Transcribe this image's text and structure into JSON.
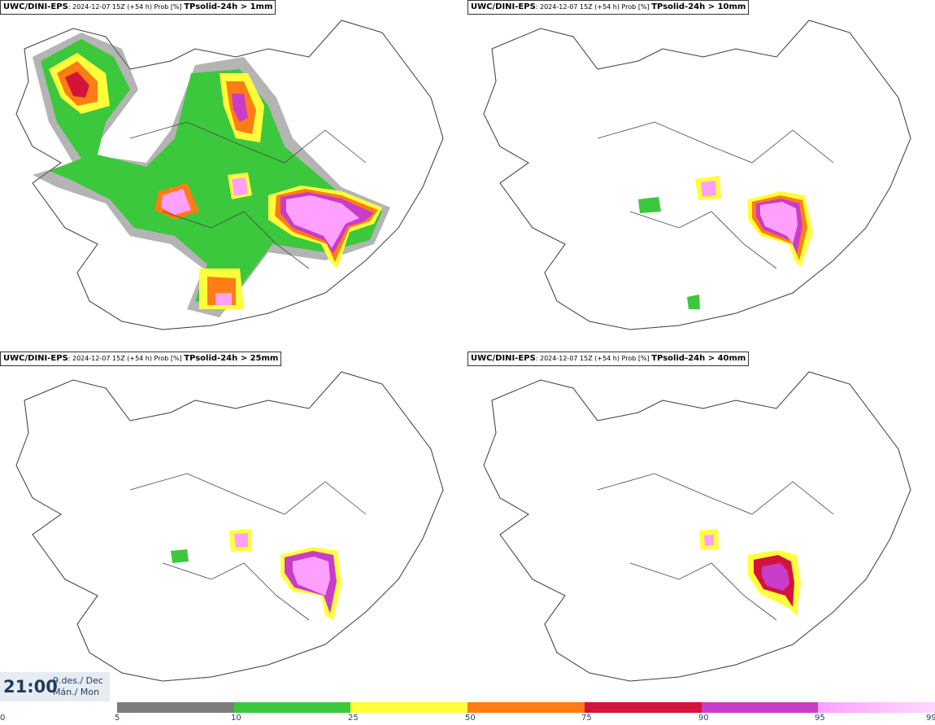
{
  "panels": [
    {
      "src": "UWC/DINI-EPS",
      "meta": ": 2024-12-07 15Z (+54 h) Prob [%] ",
      "var": "TPsolid-24h > 1mm"
    },
    {
      "src": "UWC/DINI-EPS",
      "meta": ": 2024-12-07 15Z (+54 h) Prob [%] ",
      "var": "TPsolid-24h > 10mm"
    },
    {
      "src": "UWC/DINI-EPS",
      "meta": ": 2024-12-07 15Z (+54 h) Prob [%] ",
      "var": "TPsolid-24h > 25mm"
    },
    {
      "src": "UWC/DINI-EPS",
      "meta": ": 2024-12-07 15Z (+54 h) Prob [%] ",
      "var": "TPsolid-24h > 40mm"
    }
  ],
  "time": "21:00",
  "date_line1": "9.des./ Dec",
  "date_line2": "Mán./ Mon",
  "colorbar": {
    "ticks": [
      "0",
      "5",
      "10",
      "25",
      "50",
      "75",
      "90",
      "95",
      "99"
    ],
    "colors": [
      "#b4b4b4",
      "#7d7d7d",
      "#3cc83c",
      "#ffff3c",
      "#ff7d14",
      "#d2143c",
      "#c83cc8",
      "#ffa0ff"
    ]
  }
}
